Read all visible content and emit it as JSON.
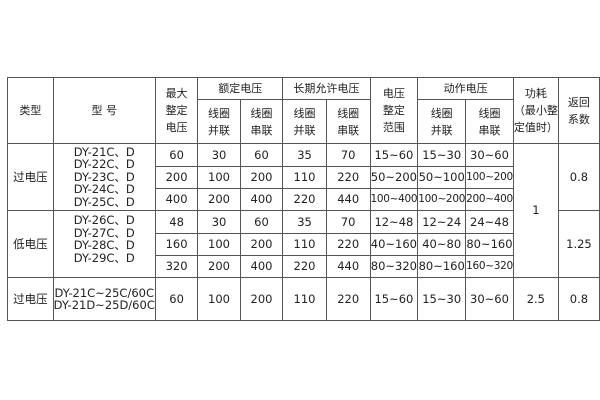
{
  "headers": {
    "type": "类型",
    "model": "型 号",
    "max_setting": [
      "最大",
      "整定",
      "电压"
    ],
    "rated_voltage": "额定电压",
    "long_term_voltage": "长期允许电压",
    "setting_range": [
      "电压",
      "整定",
      "范围"
    ],
    "action_voltage": "动作电压",
    "parallel": [
      "线圈",
      "并联"
    ],
    "series": [
      "线圈",
      "串联"
    ],
    "power": [
      "功耗",
      "（最小整",
      "定值时）"
    ],
    "return_coef": [
      "返回",
      "系数"
    ]
  },
  "groups": [
    {
      "type": "过电压",
      "models": [
        "DY-21C、D",
        "DY-22C、D",
        "DY-23C、D",
        "DY-24C、D",
        "DY-25C、D"
      ],
      "return_coef": "0.8",
      "rows": [
        [
          "60",
          "30",
          "60",
          "35",
          "70",
          "15~60",
          "15~30",
          "30~60"
        ],
        [
          "200",
          "100",
          "200",
          "110",
          "220",
          "50~200",
          "50~100",
          "100~200"
        ],
        [
          "400",
          "200",
          "400",
          "220",
          "440",
          "100~400",
          "100~200",
          "200~400"
        ]
      ]
    },
    {
      "type": "低电压",
      "models": [
        "DY-26C、D",
        "DY-27C、D",
        "DY-28C、D",
        "DY-29C、D"
      ],
      "return_coef": "1.25",
      "rows": [
        [
          "48",
          "30",
          "60",
          "35",
          "70",
          "12~48",
          "12~24",
          "24~48"
        ],
        [
          "160",
          "100",
          "200",
          "110",
          "220",
          "40~160",
          "40~80",
          "80~160"
        ],
        [
          "320",
          "200",
          "400",
          "220",
          "440",
          "80~320",
          "80~160",
          "160~320"
        ]
      ]
    },
    {
      "type": "过电压",
      "models": [
        "DY-21C~25C/60C",
        "DY-21D~25D/60C"
      ],
      "return_coef": "0.8",
      "power": "2.5",
      "rows": [
        [
          "60",
          "100",
          "200",
          "110",
          "220",
          "15~60",
          "15~30",
          "30~60"
        ]
      ]
    }
  ],
  "power_shared": "1"
}
